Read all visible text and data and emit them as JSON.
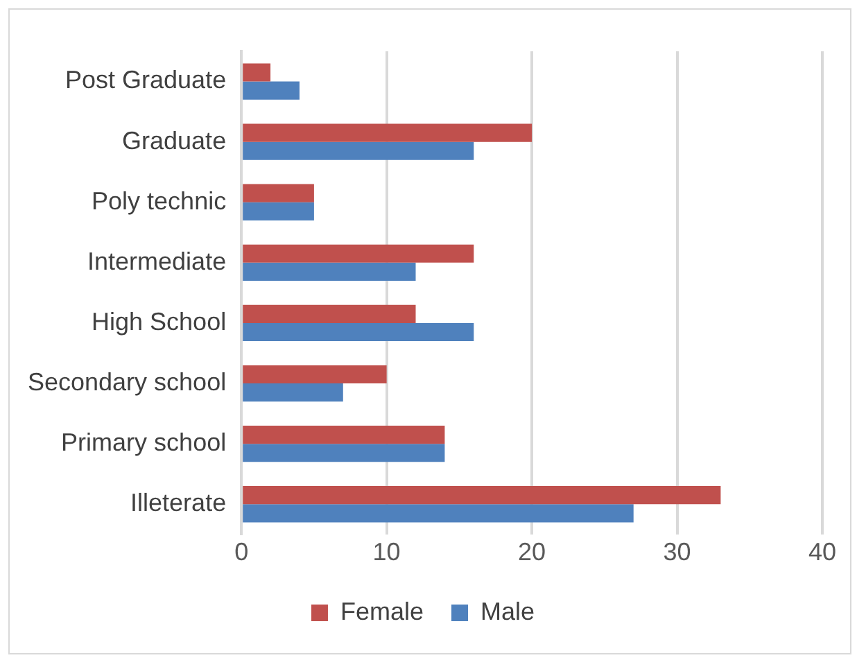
{
  "chart_data": {
    "type": "bar",
    "orientation": "horizontal",
    "categories": [
      "Post Graduate",
      "Graduate",
      "Poly technic",
      "Intermediate",
      "High School",
      "Secondary school",
      "Primary school",
      "Illeterate"
    ],
    "series": [
      {
        "name": "Female",
        "color": "#c0504d",
        "values": [
          2,
          20,
          5,
          16,
          12,
          10,
          14,
          33
        ]
      },
      {
        "name": "Male",
        "color": "#4f81bd",
        "values": [
          4,
          16,
          5,
          12,
          16,
          7,
          14,
          27
        ]
      }
    ],
    "xlim": [
      0,
      40
    ],
    "xticks": [
      0,
      10,
      20,
      30,
      40
    ],
    "grid": "x",
    "legend": "bottom"
  }
}
